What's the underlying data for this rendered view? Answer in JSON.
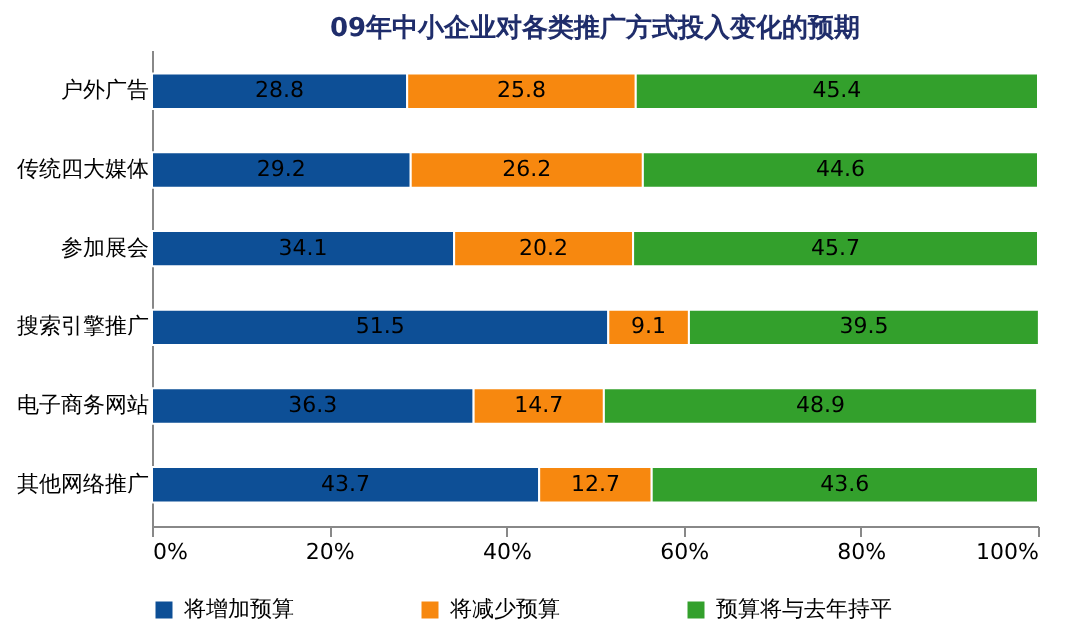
{
  "chart_data": {
    "type": "bar",
    "orientation": "horizontal",
    "stacked": true,
    "title": "09年中小企业对各类推广方式投入变化的预期",
    "categories": [
      "户外广告",
      "传统四大媒体",
      "参加展会",
      "搜索引擎推广",
      "电子商务网站",
      "其他网络推广"
    ],
    "series": [
      {
        "name": "将增加预算",
        "color": "#0d4f96",
        "values": [
          28.8,
          29.2,
          34.1,
          51.5,
          36.3,
          43.7
        ]
      },
      {
        "name": "将减少预算",
        "color": "#f7880f",
        "values": [
          25.8,
          26.2,
          20.2,
          9.1,
          14.7,
          12.7
        ]
      },
      {
        "name": "预算将与去年持平",
        "color": "#33a02c",
        "values": [
          45.4,
          44.6,
          45.7,
          39.5,
          48.9,
          43.6
        ]
      }
    ],
    "xlim": [
      0,
      100
    ],
    "xticks": [
      {
        "value": 0,
        "label": "0%"
      },
      {
        "value": 20,
        "label": "20%"
      },
      {
        "value": 40,
        "label": "40%"
      },
      {
        "value": 60,
        "label": "60%"
      },
      {
        "value": 80,
        "label": "80%"
      },
      {
        "value": 100,
        "label": "100%"
      }
    ],
    "data_labels": true,
    "legend": "bottom",
    "grid": false
  }
}
